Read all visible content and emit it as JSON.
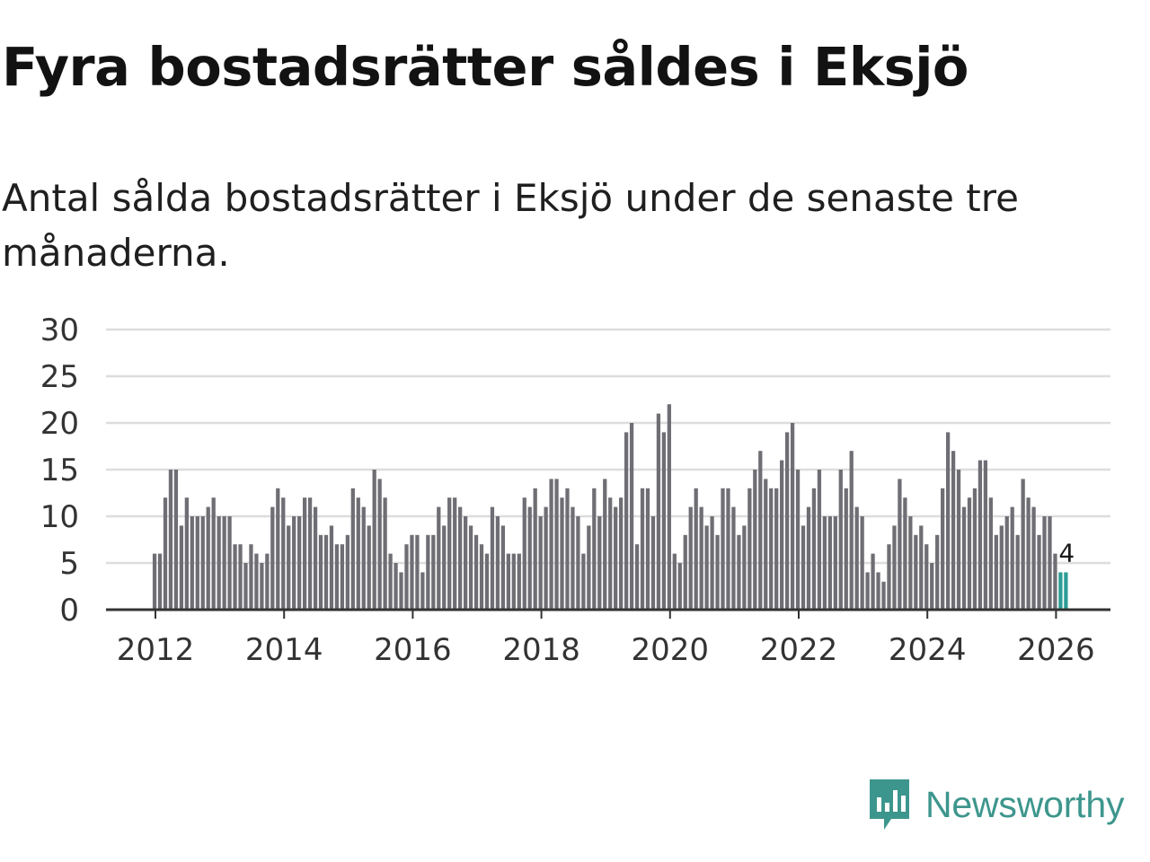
{
  "title": "Fyra bostadsrätter såldes i Eksjö",
  "subtitle": "Antal sålda bostadsrätter i Eksjö under de senaste tre månaderna.",
  "brand": {
    "name": "Newsworthy",
    "icon": "newsworthy-logo-icon"
  },
  "colors": {
    "bar": "#6f6e74",
    "highlight": "#2a9d96",
    "grid": "#dddddd",
    "axis": "#333333",
    "brand": "#3d968d"
  },
  "chart_data": {
    "type": "bar",
    "title": "Fyra bostadsrätter såldes i Eksjö",
    "xlabel": "",
    "ylabel": "",
    "ylim": [
      0,
      30
    ],
    "yticks": [
      0,
      5,
      10,
      15,
      20,
      25,
      30
    ],
    "xticks": [
      "2012",
      "2014",
      "2016",
      "2018",
      "2020",
      "2022",
      "2024",
      "2026"
    ],
    "start": "2012-01",
    "values": [
      6,
      6,
      12,
      15,
      15,
      9,
      12,
      10,
      10,
      10,
      11,
      12,
      10,
      10,
      10,
      7,
      7,
      5,
      7,
      6,
      5,
      6,
      11,
      13,
      12,
      9,
      10,
      10,
      12,
      12,
      11,
      8,
      8,
      9,
      7,
      7,
      8,
      13,
      12,
      11,
      9,
      15,
      14,
      12,
      6,
      5,
      4,
      7,
      8,
      8,
      4,
      8,
      8,
      11,
      9,
      12,
      12,
      11,
      10,
      9,
      8,
      7,
      6,
      11,
      10,
      9,
      6,
      6,
      6,
      12,
      11,
      13,
      10,
      11,
      14,
      14,
      12,
      13,
      11,
      10,
      6,
      9,
      13,
      10,
      14,
      12,
      11,
      12,
      19,
      20,
      7,
      13,
      13,
      10,
      21,
      19,
      22,
      6,
      5,
      8,
      11,
      13,
      11,
      9,
      10,
      8,
      13,
      13,
      11,
      8,
      9,
      13,
      15,
      17,
      14,
      13,
      13,
      16,
      19,
      20,
      15,
      9,
      11,
      13,
      15,
      10,
      10,
      10,
      15,
      13,
      17,
      11,
      10,
      4,
      6,
      4,
      3,
      7,
      9,
      14,
      12,
      10,
      8,
      9,
      7,
      5,
      8,
      13,
      19,
      17,
      15,
      11,
      12,
      13,
      16,
      16,
      12,
      8,
      9,
      10,
      11,
      8,
      14,
      12,
      11,
      8,
      10,
      10,
      6,
      4,
      4
    ],
    "highlight_last": 2,
    "annotation": {
      "label": "4"
    }
  }
}
